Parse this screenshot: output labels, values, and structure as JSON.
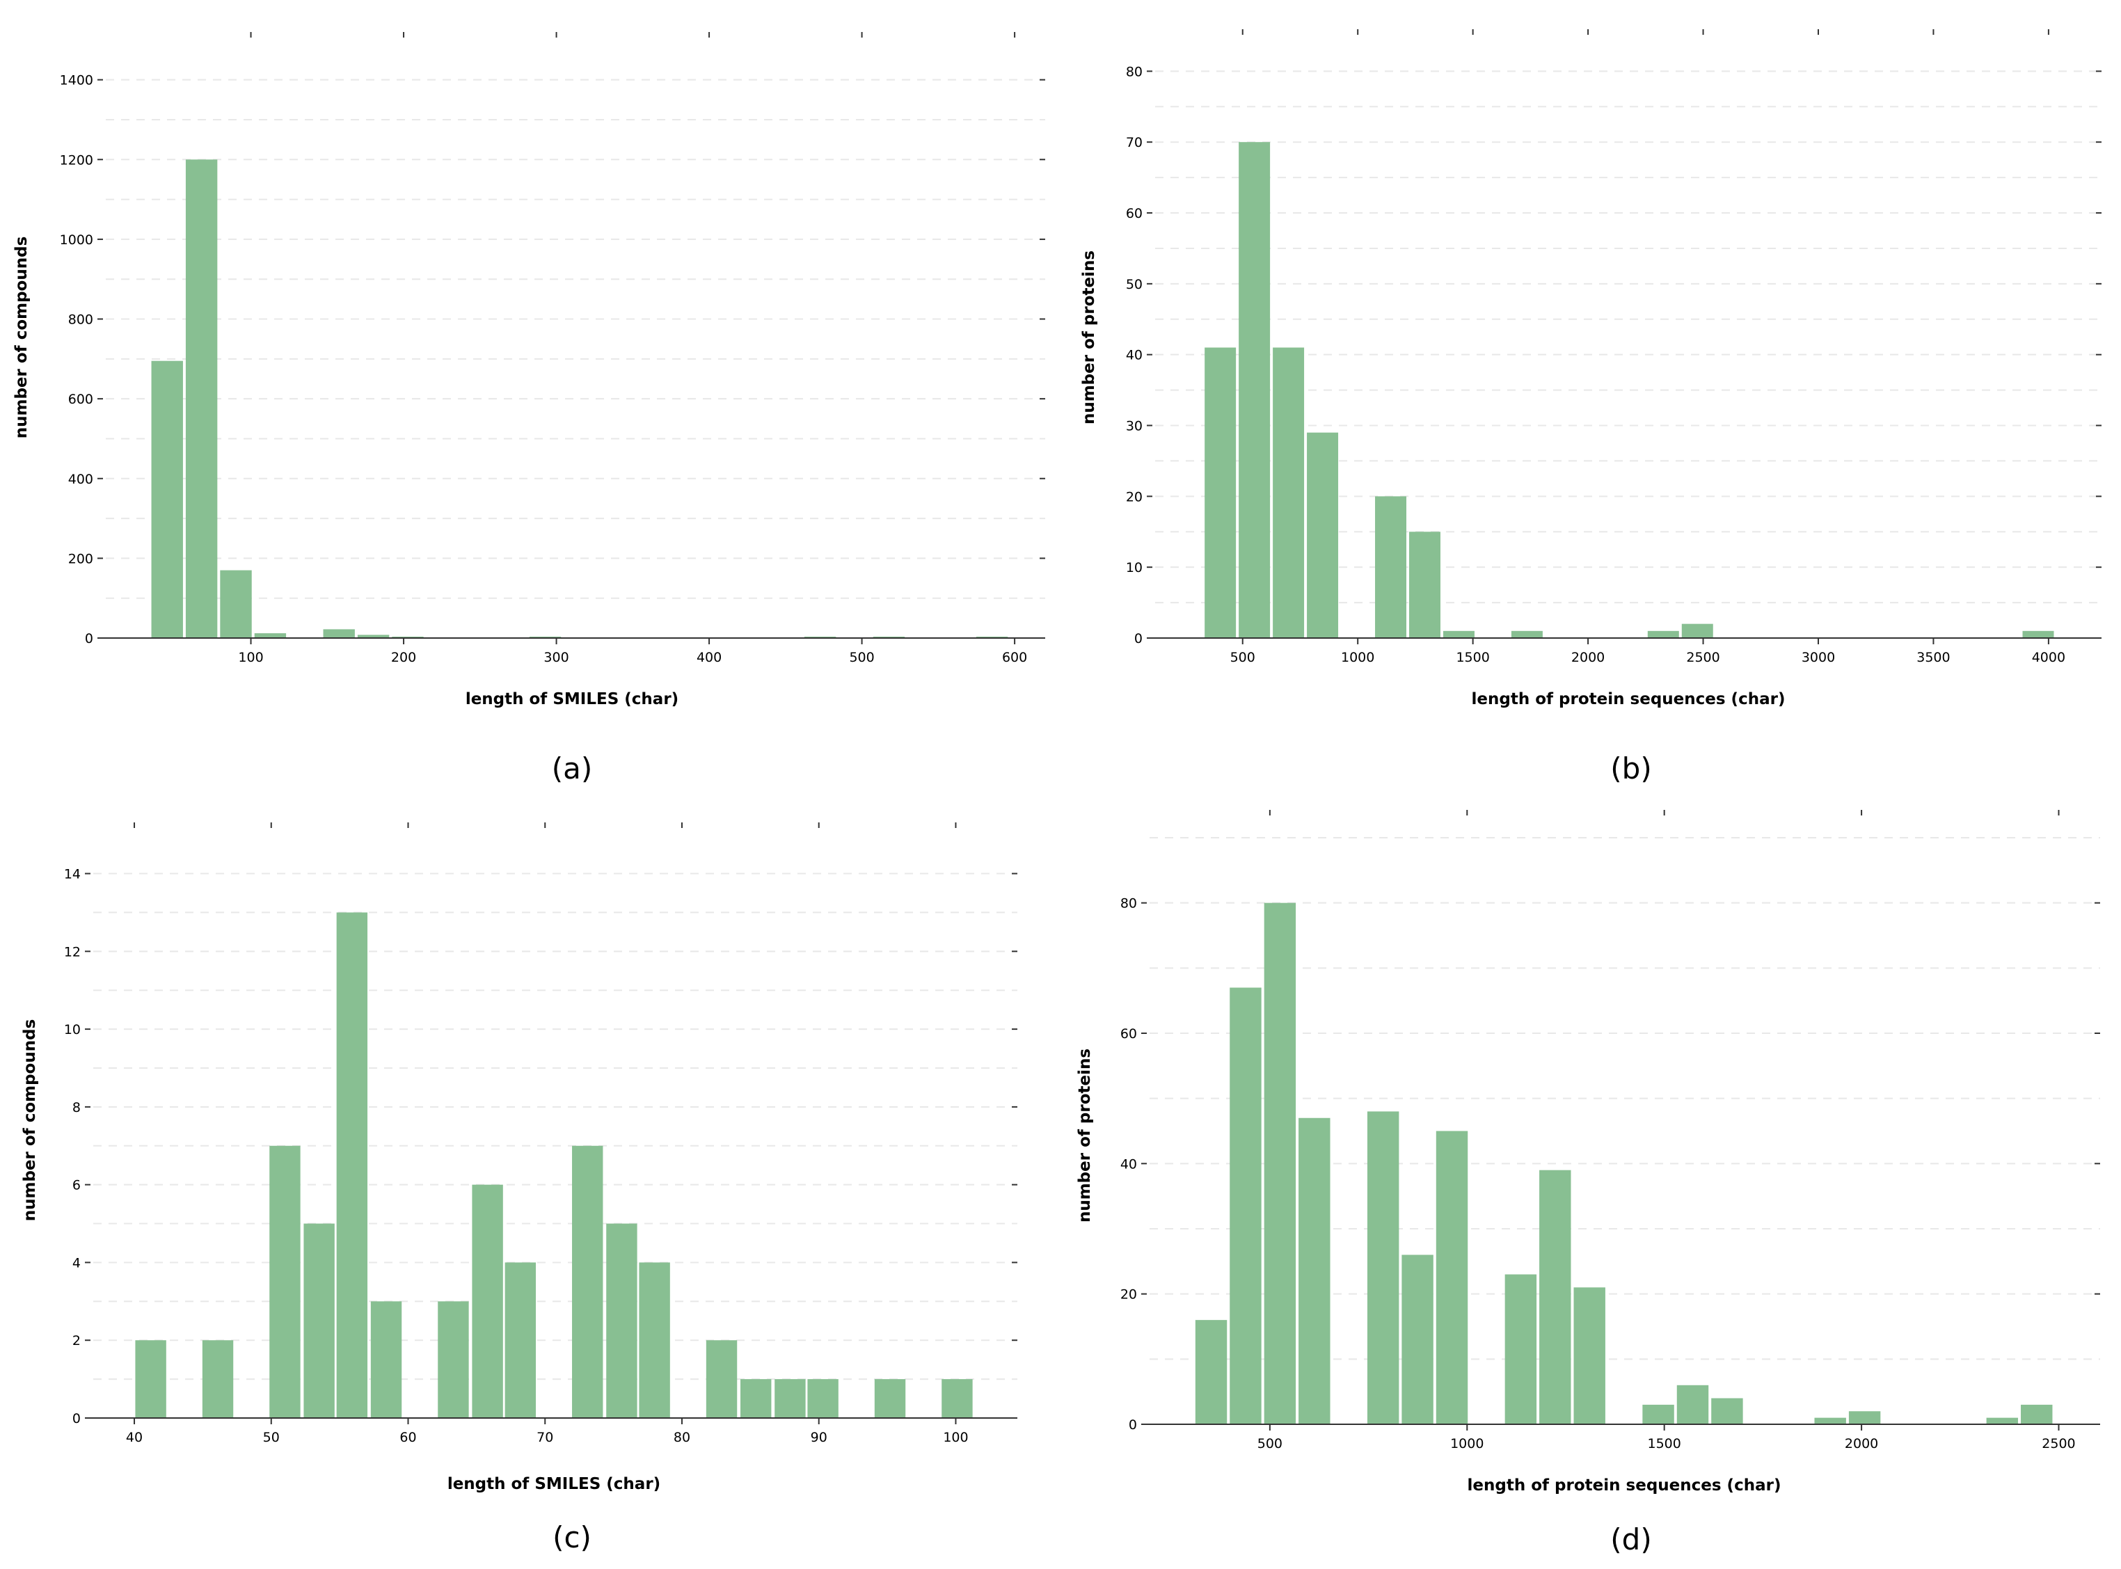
{
  "figure": {
    "bar_color": "#88bf92",
    "axis_color": "#333333",
    "grid_color": "#e8e8e8"
  },
  "chart_data": [
    {
      "id": "a",
      "type": "bar",
      "caption": "(a)",
      "xlabel": "length of SMILES (char)",
      "ylabel": "number of compounds",
      "xlim": [
        5,
        620
      ],
      "ylim": [
        0,
        1450
      ],
      "xticks": [
        100,
        200,
        300,
        400,
        500,
        600
      ],
      "xtick_labels": [
        "100",
        "200",
        "300",
        "400",
        "500",
        "600"
      ],
      "yticks": [
        0,
        200,
        400,
        600,
        800,
        1000,
        1200,
        1400
      ],
      "ytick_labels": [
        "0",
        "200",
        "400",
        "600",
        "800",
        "1000",
        "1200",
        "1400"
      ],
      "bin_width": 22.5,
      "bins": [
        {
          "x": 45.2,
          "value": 695
        },
        {
          "x": 67.7,
          "value": 1200
        },
        {
          "x": 90.2,
          "value": 170
        },
        {
          "x": 112.7,
          "value": 12
        },
        {
          "x": 157.7,
          "value": 22
        },
        {
          "x": 180.2,
          "value": 8
        },
        {
          "x": 202.7,
          "value": 3
        },
        {
          "x": 292.7,
          "value": 2
        },
        {
          "x": 472.7,
          "value": 2
        },
        {
          "x": 517.7,
          "value": 2
        },
        {
          "x": 585.2,
          "value": 2
        }
      ]
    },
    {
      "id": "b",
      "type": "bar",
      "caption": "(b)",
      "xlabel": "length of protein sequences (char)",
      "ylabel": "number of proteins",
      "xlim": [
        120,
        4230
      ],
      "ylim": [
        0,
        82
      ],
      "xticks": [
        500,
        1000,
        1500,
        2000,
        2500,
        3000,
        3500,
        4000
      ],
      "xtick_labels": [
        "500",
        "1000",
        "1500",
        "2000",
        "2500",
        "3000",
        "3500",
        "4000"
      ],
      "yticks": [
        0,
        10,
        20,
        30,
        40,
        50,
        60,
        70,
        80
      ],
      "ytick_labels": [
        "0",
        "10",
        "20",
        "30",
        "40",
        "50",
        "60",
        "70",
        "80"
      ],
      "bin_width": 148,
      "bins": [
        {
          "x": 403,
          "value": 41
        },
        {
          "x": 551,
          "value": 70
        },
        {
          "x": 699,
          "value": 41
        },
        {
          "x": 847,
          "value": 29
        },
        {
          "x": 1143,
          "value": 20
        },
        {
          "x": 1291,
          "value": 15
        },
        {
          "x": 1439,
          "value": 1
        },
        {
          "x": 1735,
          "value": 1
        },
        {
          "x": 2327,
          "value": 1
        },
        {
          "x": 2475,
          "value": 2
        },
        {
          "x": 3955,
          "value": 1
        }
      ]
    },
    {
      "id": "c",
      "type": "bar",
      "caption": "(c)",
      "xlabel": "length of SMILES (char)",
      "ylabel": "number of compounds",
      "xlim": [
        37,
        104.5
      ],
      "ylim": [
        0,
        14.6
      ],
      "xticks": [
        40,
        50,
        60,
        70,
        80,
        90,
        100
      ],
      "xtick_labels": [
        "40",
        "50",
        "60",
        "70",
        "80",
        "90",
        "100"
      ],
      "yticks": [
        0,
        2,
        4,
        6,
        8,
        10,
        12,
        14
      ],
      "ytick_labels": [
        "0",
        "2",
        "4",
        "6",
        "8",
        "10",
        "12",
        "14"
      ],
      "bin_width": 2.46,
      "bins": [
        {
          "x": 41.2,
          "value": 2
        },
        {
          "x": 46.1,
          "value": 2
        },
        {
          "x": 51.0,
          "value": 7
        },
        {
          "x": 53.5,
          "value": 5
        },
        {
          "x": 55.9,
          "value": 13
        },
        {
          "x": 58.4,
          "value": 3
        },
        {
          "x": 63.3,
          "value": 3
        },
        {
          "x": 65.8,
          "value": 6
        },
        {
          "x": 68.2,
          "value": 4
        },
        {
          "x": 73.1,
          "value": 7
        },
        {
          "x": 75.6,
          "value": 5
        },
        {
          "x": 78.0,
          "value": 4
        },
        {
          "x": 82.9,
          "value": 2
        },
        {
          "x": 85.4,
          "value": 1
        },
        {
          "x": 87.9,
          "value": 1
        },
        {
          "x": 90.3,
          "value": 1
        },
        {
          "x": 95.2,
          "value": 1
        },
        {
          "x": 100.1,
          "value": 1
        }
      ]
    },
    {
      "id": "d",
      "type": "bar",
      "caption": "(d)",
      "xlabel": "length of protein sequences (char)",
      "ylabel": "number of proteins",
      "xlim": [
        195,
        2605
      ],
      "ylim": [
        0,
        90
      ],
      "xticks": [
        500,
        1000,
        1500,
        2000,
        2500
      ],
      "xtick_labels": [
        "500",
        "1000",
        "1500",
        "2000",
        "2500"
      ],
      "yticks": [
        0,
        20,
        40,
        60,
        80
      ],
      "ytick_labels": [
        "0",
        "20",
        "40",
        "60",
        "80"
      ],
      "bin_width": 87.2,
      "bins": [
        {
          "x": 351.2,
          "value": 16
        },
        {
          "x": 438.4,
          "value": 67
        },
        {
          "x": 525.6,
          "value": 80
        },
        {
          "x": 612.8,
          "value": 47
        },
        {
          "x": 787.2,
          "value": 48
        },
        {
          "x": 874.4,
          "value": 26
        },
        {
          "x": 961.6,
          "value": 45
        },
        {
          "x": 1136.0,
          "value": 23
        },
        {
          "x": 1223.2,
          "value": 39
        },
        {
          "x": 1310.4,
          "value": 21
        },
        {
          "x": 1484.8,
          "value": 3
        },
        {
          "x": 1572.0,
          "value": 6
        },
        {
          "x": 1659.2,
          "value": 4
        },
        {
          "x": 1920.8,
          "value": 1
        },
        {
          "x": 2008.0,
          "value": 2
        },
        {
          "x": 2356.8,
          "value": 1
        },
        {
          "x": 2444.0,
          "value": 3
        }
      ]
    }
  ]
}
